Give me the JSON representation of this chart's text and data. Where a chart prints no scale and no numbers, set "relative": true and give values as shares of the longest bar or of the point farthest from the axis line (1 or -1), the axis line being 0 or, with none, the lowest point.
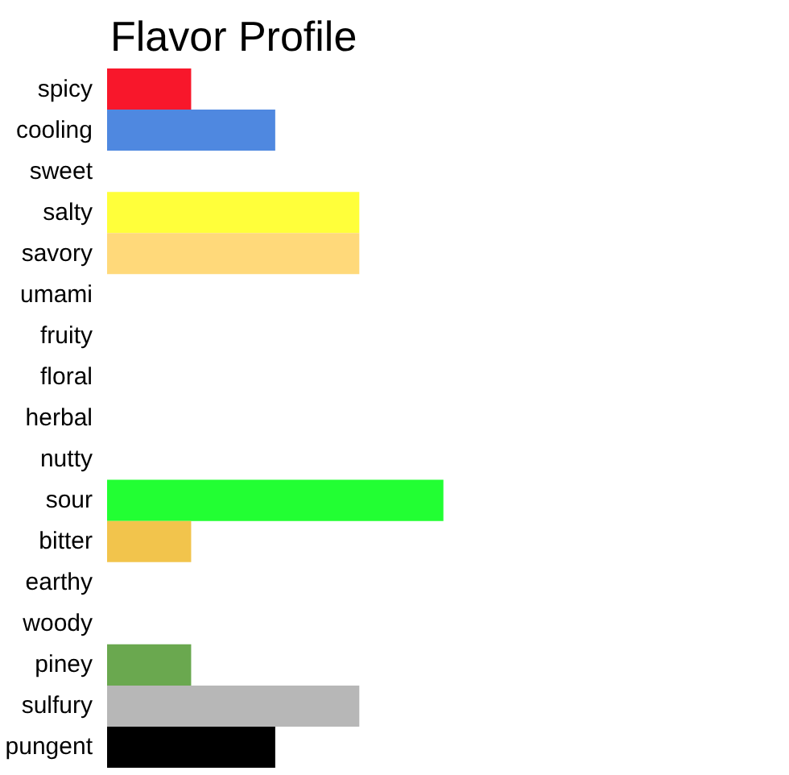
{
  "chart_data": {
    "type": "bar",
    "orientation": "horizontal",
    "relative": true,
    "title": "Flavor Profile",
    "categories": [
      "spicy",
      "cooling",
      "sweet",
      "salty",
      "savory",
      "umami",
      "fruity",
      "floral",
      "herbal",
      "nutty",
      "sour",
      "bitter",
      "earthy",
      "woody",
      "piney",
      "sulfury",
      "pungent"
    ],
    "values": [
      0.25,
      0.5,
      0,
      0.75,
      0.75,
      0,
      0,
      0,
      0,
      0,
      1,
      0.25,
      0,
      0,
      0.25,
      0.75,
      0.5
    ],
    "colors": [
      "#f8172b",
      "#4f88e0",
      null,
      "#ffff3a",
      "#ffd97a",
      null,
      null,
      null,
      null,
      null,
      "#22ff33",
      "#f2c44c",
      null,
      null,
      "#6aa84f",
      "#b7b7b7",
      "#000000"
    ],
    "grid": false
  }
}
